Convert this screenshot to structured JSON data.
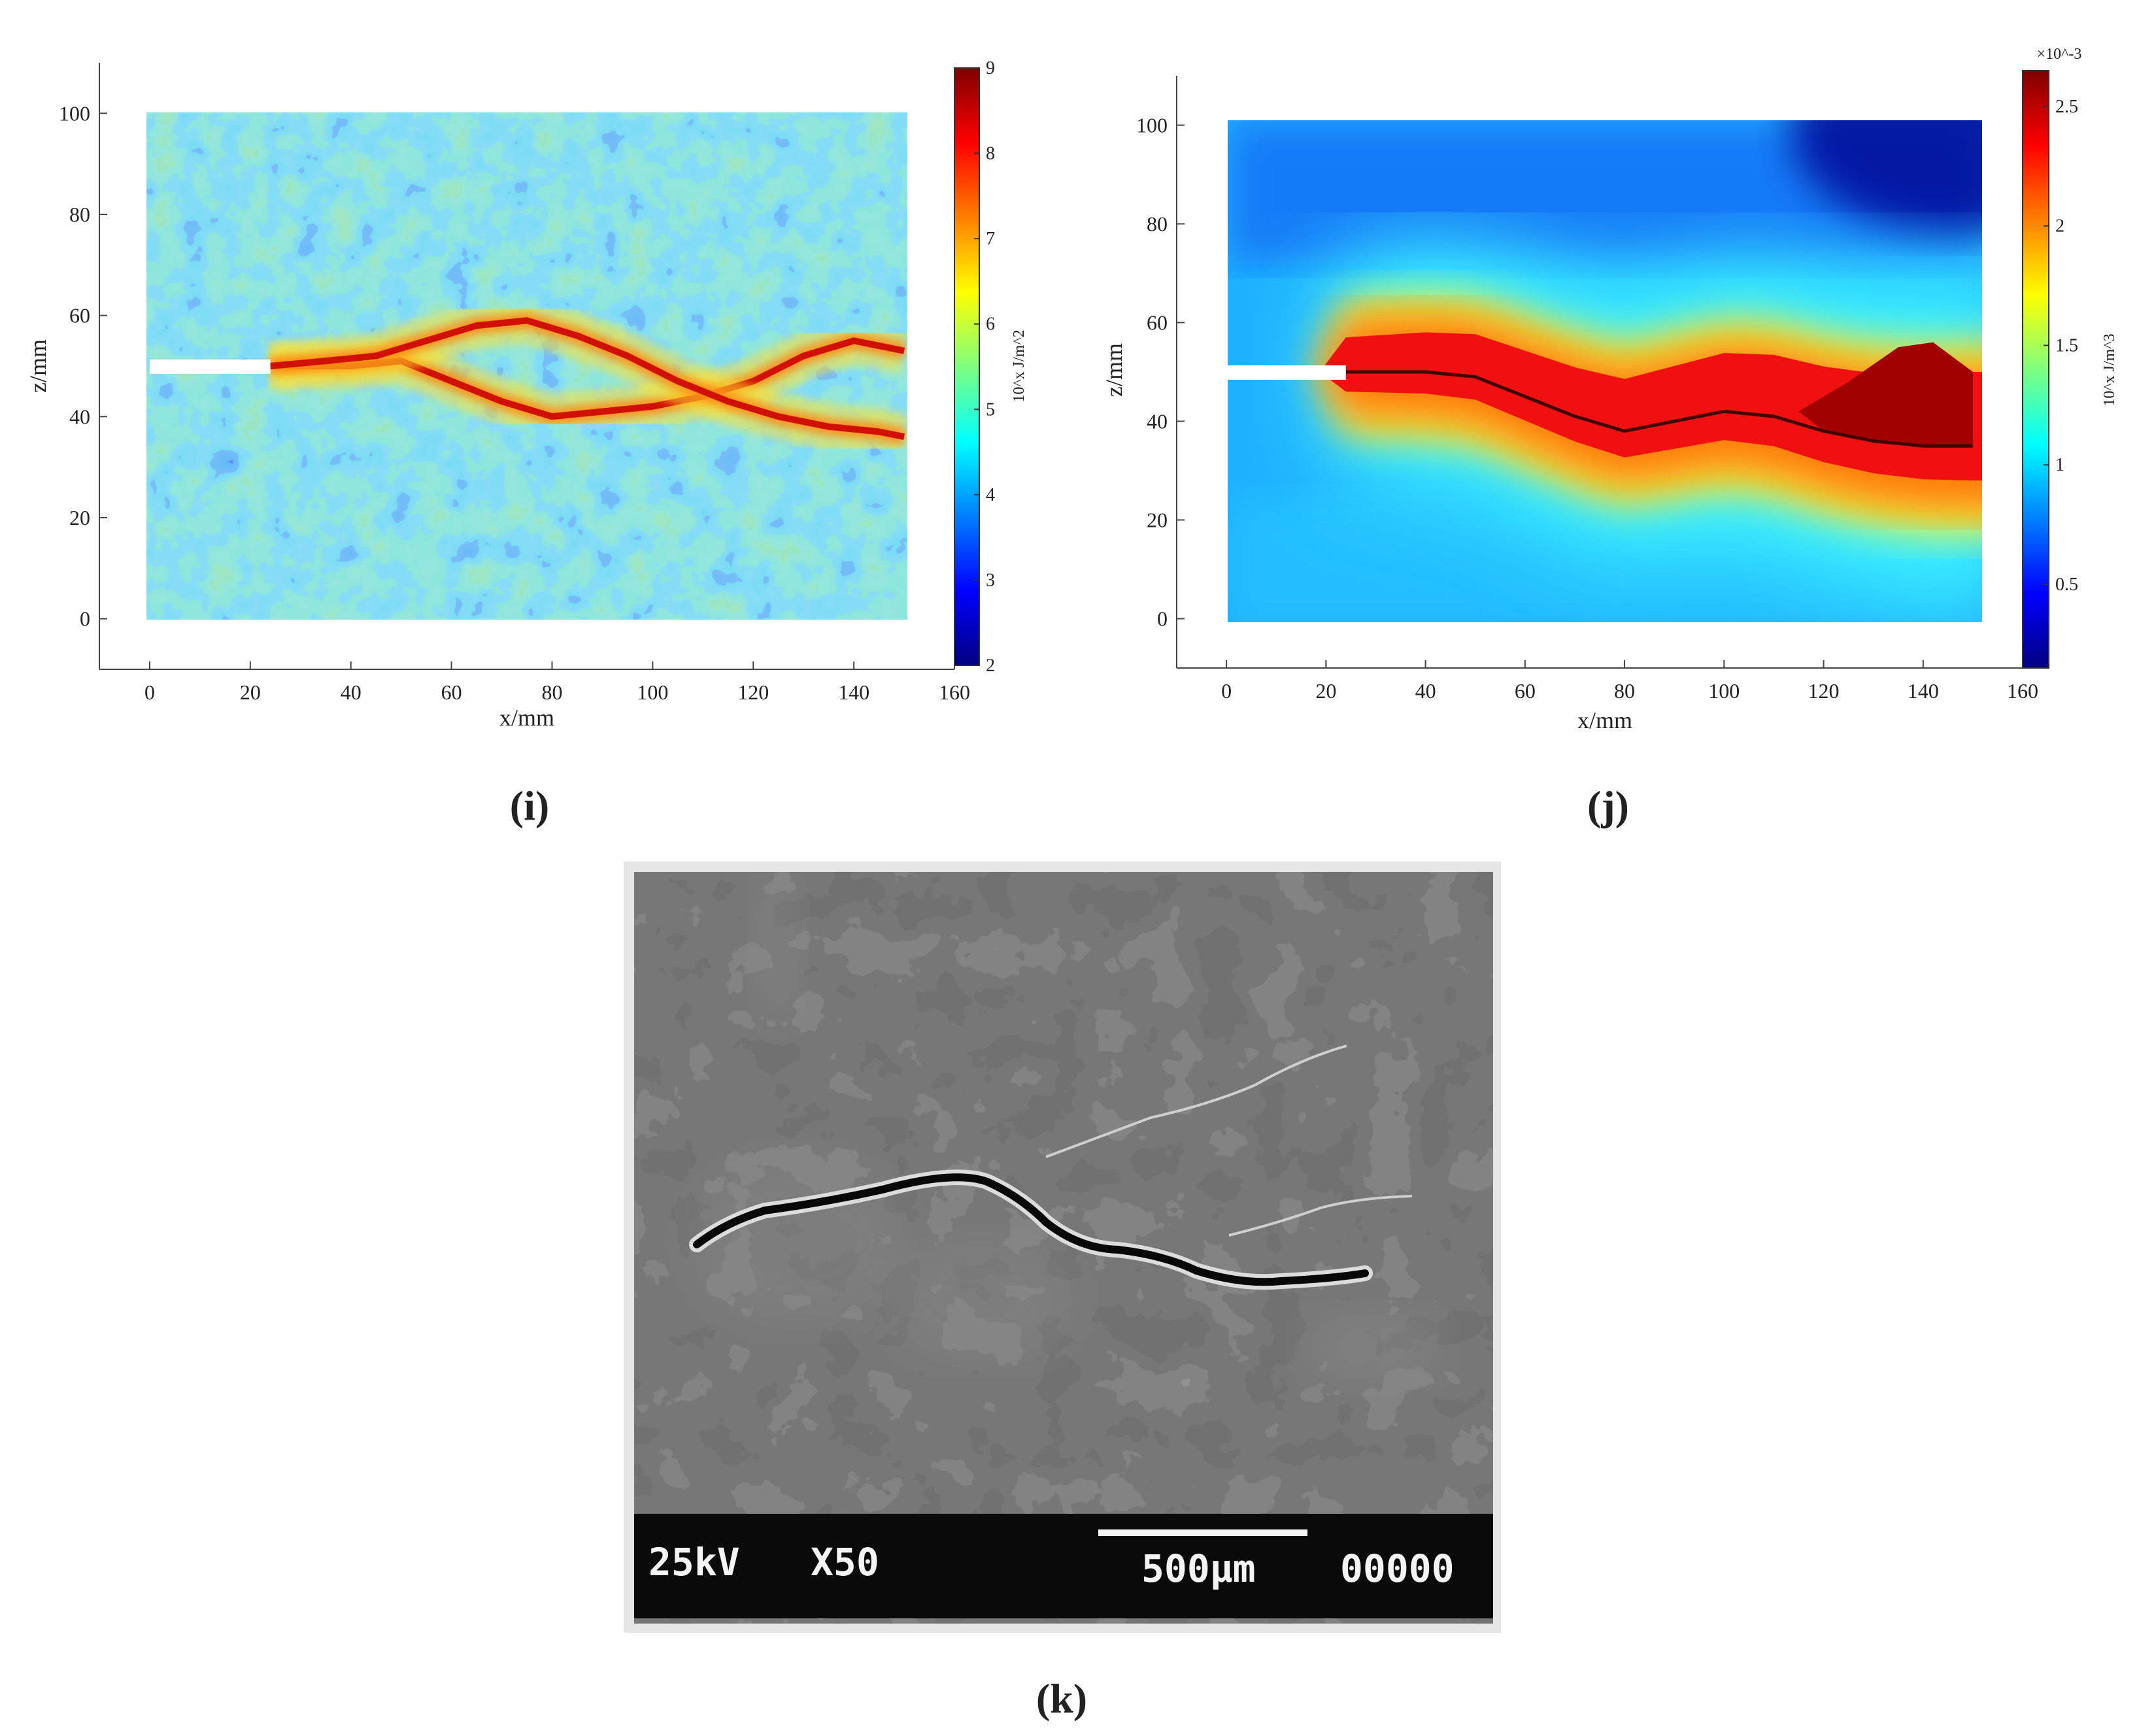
{
  "chart_data": [
    {
      "panel": "(i)",
      "type": "heatmap",
      "title": "",
      "xlabel": "x/mm",
      "ylabel": "z/mm",
      "xlim": [
        -10,
        160
      ],
      "ylim": [
        -10,
        110
      ],
      "xticks": [
        0,
        20,
        40,
        60,
        80,
        100,
        120,
        140,
        160
      ],
      "yticks": [
        0,
        20,
        40,
        60,
        80,
        100
      ],
      "specimen": {
        "x": [
          0,
          150
        ],
        "z": [
          0,
          100
        ]
      },
      "notch": {
        "x": [
          0,
          24
        ],
        "z": 50
      },
      "colorbar": {
        "label": "10^x J/m^2",
        "exponent_prefix": "",
        "range": [
          2,
          9
        ],
        "ticks": [
          2,
          3,
          4,
          5,
          6,
          7,
          8,
          9
        ],
        "colormap": [
          "#00007f",
          "#0000ff",
          "#007fff",
          "#00ffff",
          "#7fff7f",
          "#ffff00",
          "#ff7f00",
          "#ff0000",
          "#7f0000"
        ]
      },
      "crack_paths": [
        {
          "x": [
            24,
            30,
            40,
            50,
            60,
            70,
            80,
            90,
            100,
            110,
            120,
            130,
            140,
            150
          ],
          "z": [
            50,
            50,
            50,
            51,
            47,
            43,
            40,
            41,
            42,
            44,
            47,
            52,
            55,
            53
          ]
        },
        {
          "x": [
            24,
            35,
            45,
            55,
            65,
            75,
            85,
            95,
            105,
            115,
            125,
            135,
            145,
            150
          ],
          "z": [
            50,
            51,
            52,
            55,
            58,
            59,
            56,
            52,
            47,
            43,
            40,
            38,
            37,
            36
          ]
        }
      ],
      "background_level": 5.0,
      "crack_level": 8.4
    },
    {
      "panel": "(j)",
      "type": "heatmap",
      "title": "",
      "xlabel": "x/mm",
      "ylabel": "z/mm",
      "xlim": [
        -10,
        160
      ],
      "ylim": [
        -10,
        110
      ],
      "xticks": [
        0,
        20,
        40,
        60,
        80,
        100,
        120,
        140,
        160
      ],
      "yticks": [
        0,
        20,
        40,
        60,
        80,
        100
      ],
      "specimen": {
        "x": [
          0,
          150
        ],
        "z": [
          0,
          100
        ]
      },
      "notch": {
        "x": [
          0,
          24
        ],
        "z": 50
      },
      "colorbar": {
        "label": "10^x J/m^3",
        "exponent_prefix": "×10^-3",
        "range": [
          0.15,
          2.65
        ],
        "ticks": [
          0.5,
          1,
          1.5,
          2,
          2.5
        ],
        "colormap": [
          "#00007f",
          "#0000ff",
          "#007fff",
          "#00ffff",
          "#7fff7f",
          "#ffff00",
          "#ff7f00",
          "#ff0000",
          "#7f0000"
        ]
      },
      "crack_paths": [
        {
          "x": [
            24,
            30,
            40,
            50,
            60,
            70,
            80,
            90,
            100,
            110,
            120,
            130,
            140,
            145,
            150
          ],
          "z": [
            50,
            50,
            50,
            49,
            45,
            41,
            38,
            40,
            42,
            41,
            38,
            36,
            35,
            35,
            35
          ]
        }
      ],
      "peak_level": 2.6
    }
  ],
  "panel_labels": {
    "i": "(i)",
    "j": "(j)",
    "k": "(k)"
  },
  "micrograph": {
    "voltage": "25kV",
    "magnification": "X50",
    "scale_bar": "500µm",
    "frame_number": "00000"
  }
}
